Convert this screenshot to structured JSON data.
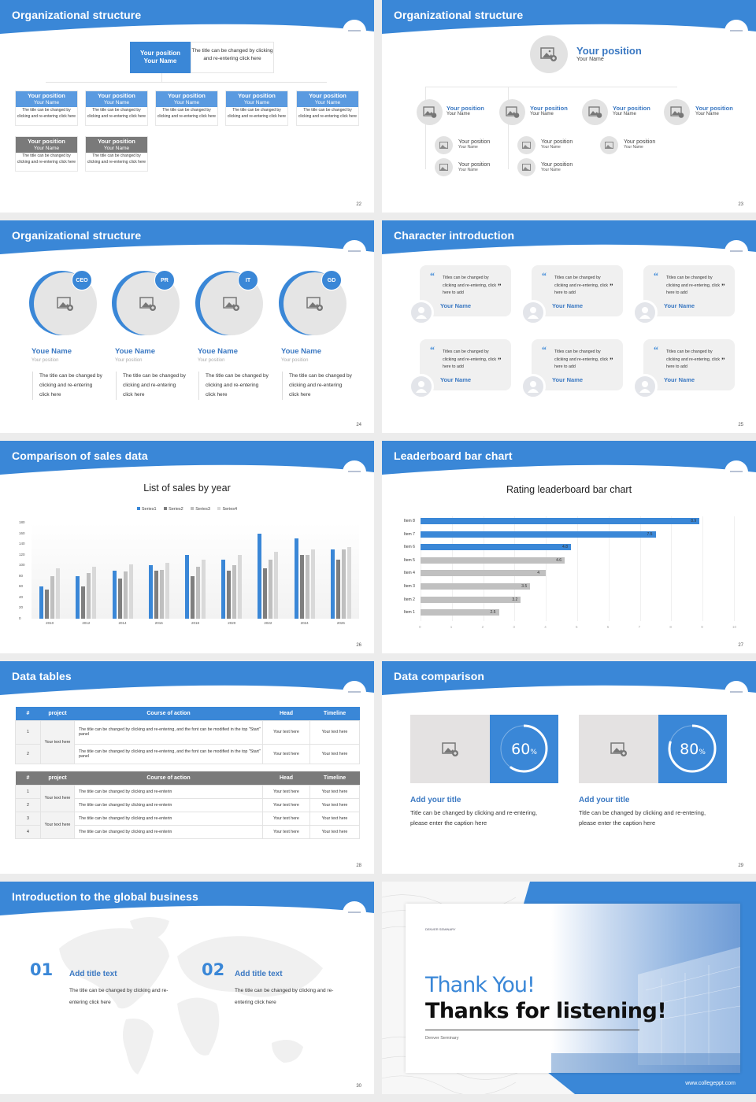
{
  "theme": {
    "primary": "#3a87d7",
    "dark_blue_text": "#3a78c2",
    "gray": "#7a7a7a",
    "light_gray": "#e4e2e2"
  },
  "slides": [
    {
      "page": "22",
      "title": "Organizational structure",
      "top_box": {
        "position": "Your position",
        "name": "Your Name",
        "desc": "The title can be changed by clicking and re-entering click here"
      },
      "cards": [
        {
          "position": "Your position",
          "name": "Your Name",
          "desc": "The title can be changed by clicking and re-entering click here",
          "style": "blue"
        },
        {
          "position": "Your position",
          "name": "Your Name",
          "desc": "The title can be changed by clicking and re-entering click here",
          "style": "blue"
        },
        {
          "position": "Your position",
          "name": "Your Name",
          "desc": "The title can be changed by clicking and re-entering click here",
          "style": "blue"
        },
        {
          "position": "Your position",
          "name": "Your Name",
          "desc": "The title can be changed by clicking and re-entering click here",
          "style": "blue"
        },
        {
          "position": "Your position",
          "name": "Your Name",
          "desc": "The title can be changed by clicking and re-entering click here",
          "style": "blue"
        },
        {
          "position": "Your position",
          "name": "Your Name",
          "desc": "The title can be changed by clicking and re-entering click here",
          "style": "gray"
        },
        {
          "position": "Your position",
          "name": "Your Name",
          "desc": "The title can be changed by clicking and re-entering click here",
          "style": "gray"
        }
      ]
    },
    {
      "page": "23",
      "title": "Organizational structure",
      "top": {
        "position": "Your position",
        "name": "Your Name"
      },
      "level2": [
        {
          "position": "Your position",
          "name": "Your Name"
        },
        {
          "position": "Your position",
          "name": "Your Name"
        },
        {
          "position": "Your position",
          "name": "Your Name"
        },
        {
          "position": "Your position",
          "name": "Your Name"
        }
      ],
      "level3": [
        {
          "position": "Your position",
          "name": "Your Name"
        },
        {
          "position": "Your position",
          "name": "Your Name"
        },
        {
          "position": "Your position",
          "name": "Your Name"
        },
        {
          "position": "Your position",
          "name": "Your Name"
        },
        {
          "position": "Your position",
          "name": "Your Name"
        }
      ]
    },
    {
      "page": "24",
      "title": "Organizational structure",
      "members": [
        {
          "badge": "CEO",
          "name": "Youe Name",
          "position": "Your position",
          "desc": "The title can be changed by clicking and re-entering click here"
        },
        {
          "badge": "PR",
          "name": "Youe Name",
          "position": "Your position",
          "desc": "The title can be changed by clicking and re-entering click here"
        },
        {
          "badge": "IT",
          "name": "Youe Name",
          "position": "Your position",
          "desc": "The title can be changed by clicking and re-entering click here"
        },
        {
          "badge": "GD",
          "name": "Youe Name",
          "position": "Your position",
          "desc": "The title can be changed by clicking and re-entering click here"
        }
      ]
    },
    {
      "page": "25",
      "title": "Character introduction",
      "quotes": [
        {
          "text": "Titles can be changed by clicking and re-entering, click here to add",
          "name": "Your Name"
        },
        {
          "text": "Titles can be changed by clicking and re-entering, click here to add",
          "name": "Your Name"
        },
        {
          "text": "Titles can be changed by clicking and re-entering, click here to add",
          "name": "Your Name"
        },
        {
          "text": "Titles can be changed by clicking and re-entering, click here to add",
          "name": "Your Name"
        },
        {
          "text": "Titles can be changed by clicking and re-entering, click here to add",
          "name": "Your Name"
        },
        {
          "text": "Titles can be changed by clicking and re-entering, click here to add",
          "name": "Your Name"
        }
      ]
    },
    {
      "page": "26",
      "title": "Comparison of sales data"
    },
    {
      "page": "27",
      "title": "Leaderboard bar chart"
    },
    {
      "page": "28",
      "title": "Data tables",
      "table1": {
        "headers": [
          "#",
          "project",
          "Course of action",
          "Head",
          "Timeline"
        ],
        "project": "Your text here",
        "rows": [
          {
            "num": "1",
            "action": "The title can be changed by clicking and re-entering, and the font can be modified in the top \"Start\" panel",
            "head": "Your text here",
            "timeline": "Your text here"
          },
          {
            "num": "2",
            "action": "The title can be changed by clicking and re-entering, and the font can be modified in the top \"Start\" panel",
            "head": "Your text here",
            "timeline": "Your text here"
          }
        ]
      },
      "table2": {
        "headers": [
          "#",
          "project",
          "Course of action",
          "Head",
          "Timeline"
        ],
        "projects": [
          "Your text here",
          "Your text here"
        ],
        "rows": [
          {
            "num": "1",
            "action": "The title can be changed by clicking and re-enterin",
            "head": "Your text here",
            "timeline": "Your text here"
          },
          {
            "num": "2",
            "action": "The title can be changed by clicking and re-enterin",
            "head": "Your text here",
            "timeline": "Your text here"
          },
          {
            "num": "3",
            "action": "The title can be changed by clicking and re-enterin",
            "head": "Your text here",
            "timeline": "Your text here"
          },
          {
            "num": "4",
            "action": "The title can be changed by clicking and re-enterin",
            "head": "Your text here",
            "timeline": "Your text here"
          }
        ]
      }
    },
    {
      "page": "29",
      "title": "Data comparison",
      "items": [
        {
          "percent": "60",
          "unit": "%",
          "value": 60,
          "title": "Add your title",
          "desc": "Title can be changed by clicking and re-entering, please enter the caption here"
        },
        {
          "percent": "80",
          "unit": "%",
          "value": 80,
          "title": "Add your title",
          "desc": "Title can be changed by clicking and re-entering, please enter the caption here"
        }
      ]
    },
    {
      "page": "30",
      "title": "Introduction to the global business",
      "items": [
        {
          "num": "01",
          "title": "Add title text",
          "desc": "The title can be changed by clicking and re-entering click here"
        },
        {
          "num": "02",
          "title": "Add title text",
          "desc": "The title can be changed by clicking and re-entering click here"
        }
      ]
    },
    {
      "title_blue": "Thank You!",
      "title_black": "Thanks for listening!",
      "subtitle": "Denver Seminary",
      "logo_text": "DENVER SEMINARY",
      "url": "www.collegeppt.com"
    }
  ],
  "chart_data": [
    {
      "type": "bar",
      "title": "List of sales by year",
      "categories": [
        "2010",
        "2012",
        "2014",
        "2016",
        "2018",
        "2020",
        "2022",
        "2024",
        "2026"
      ],
      "series": [
        {
          "name": "Series1",
          "color": "#3a87d7",
          "values": [
            60,
            80,
            90,
            100,
            120,
            110,
            160,
            150,
            130
          ]
        },
        {
          "name": "Series2",
          "color": "#7f7f7f",
          "values": [
            55,
            60,
            75,
            90,
            80,
            90,
            95,
            120,
            110
          ]
        },
        {
          "name": "Series3",
          "color": "#bfbfbf",
          "values": [
            80,
            85,
            88,
            92,
            98,
            100,
            110,
            120,
            130
          ]
        },
        {
          "name": "Series4",
          "color": "#d9d9d9",
          "values": [
            95,
            98,
            102,
            105,
            110,
            120,
            126,
            130,
            135
          ]
        }
      ],
      "ylim": [
        0,
        180
      ],
      "yticks": [
        0,
        20,
        40,
        60,
        80,
        100,
        120,
        140,
        160,
        180
      ],
      "xlabel": "",
      "ylabel": "",
      "legend_position": "top",
      "grid": false
    },
    {
      "type": "bar",
      "orientation": "horizontal",
      "title": "Rating leaderboard bar chart",
      "categories": [
        "Item 8",
        "Item 7",
        "Item 6",
        "Item 5",
        "Item 4",
        "Item 3",
        "Item 2",
        "Item 1"
      ],
      "values": [
        8.9,
        7.5,
        4.8,
        4.6,
        4,
        3.5,
        3.2,
        2.5
      ],
      "labels": [
        "8.9",
        "7.5",
        "4.8",
        "4.6",
        "4",
        "3.5",
        "3.2",
        "2.5"
      ],
      "highlight": [
        true,
        true,
        true,
        false,
        false,
        false,
        false,
        false
      ],
      "xlim": [
        0,
        10
      ],
      "xticks": [
        0,
        1,
        2,
        3,
        4,
        5,
        6,
        7,
        8,
        9,
        10
      ],
      "grid": true
    }
  ]
}
